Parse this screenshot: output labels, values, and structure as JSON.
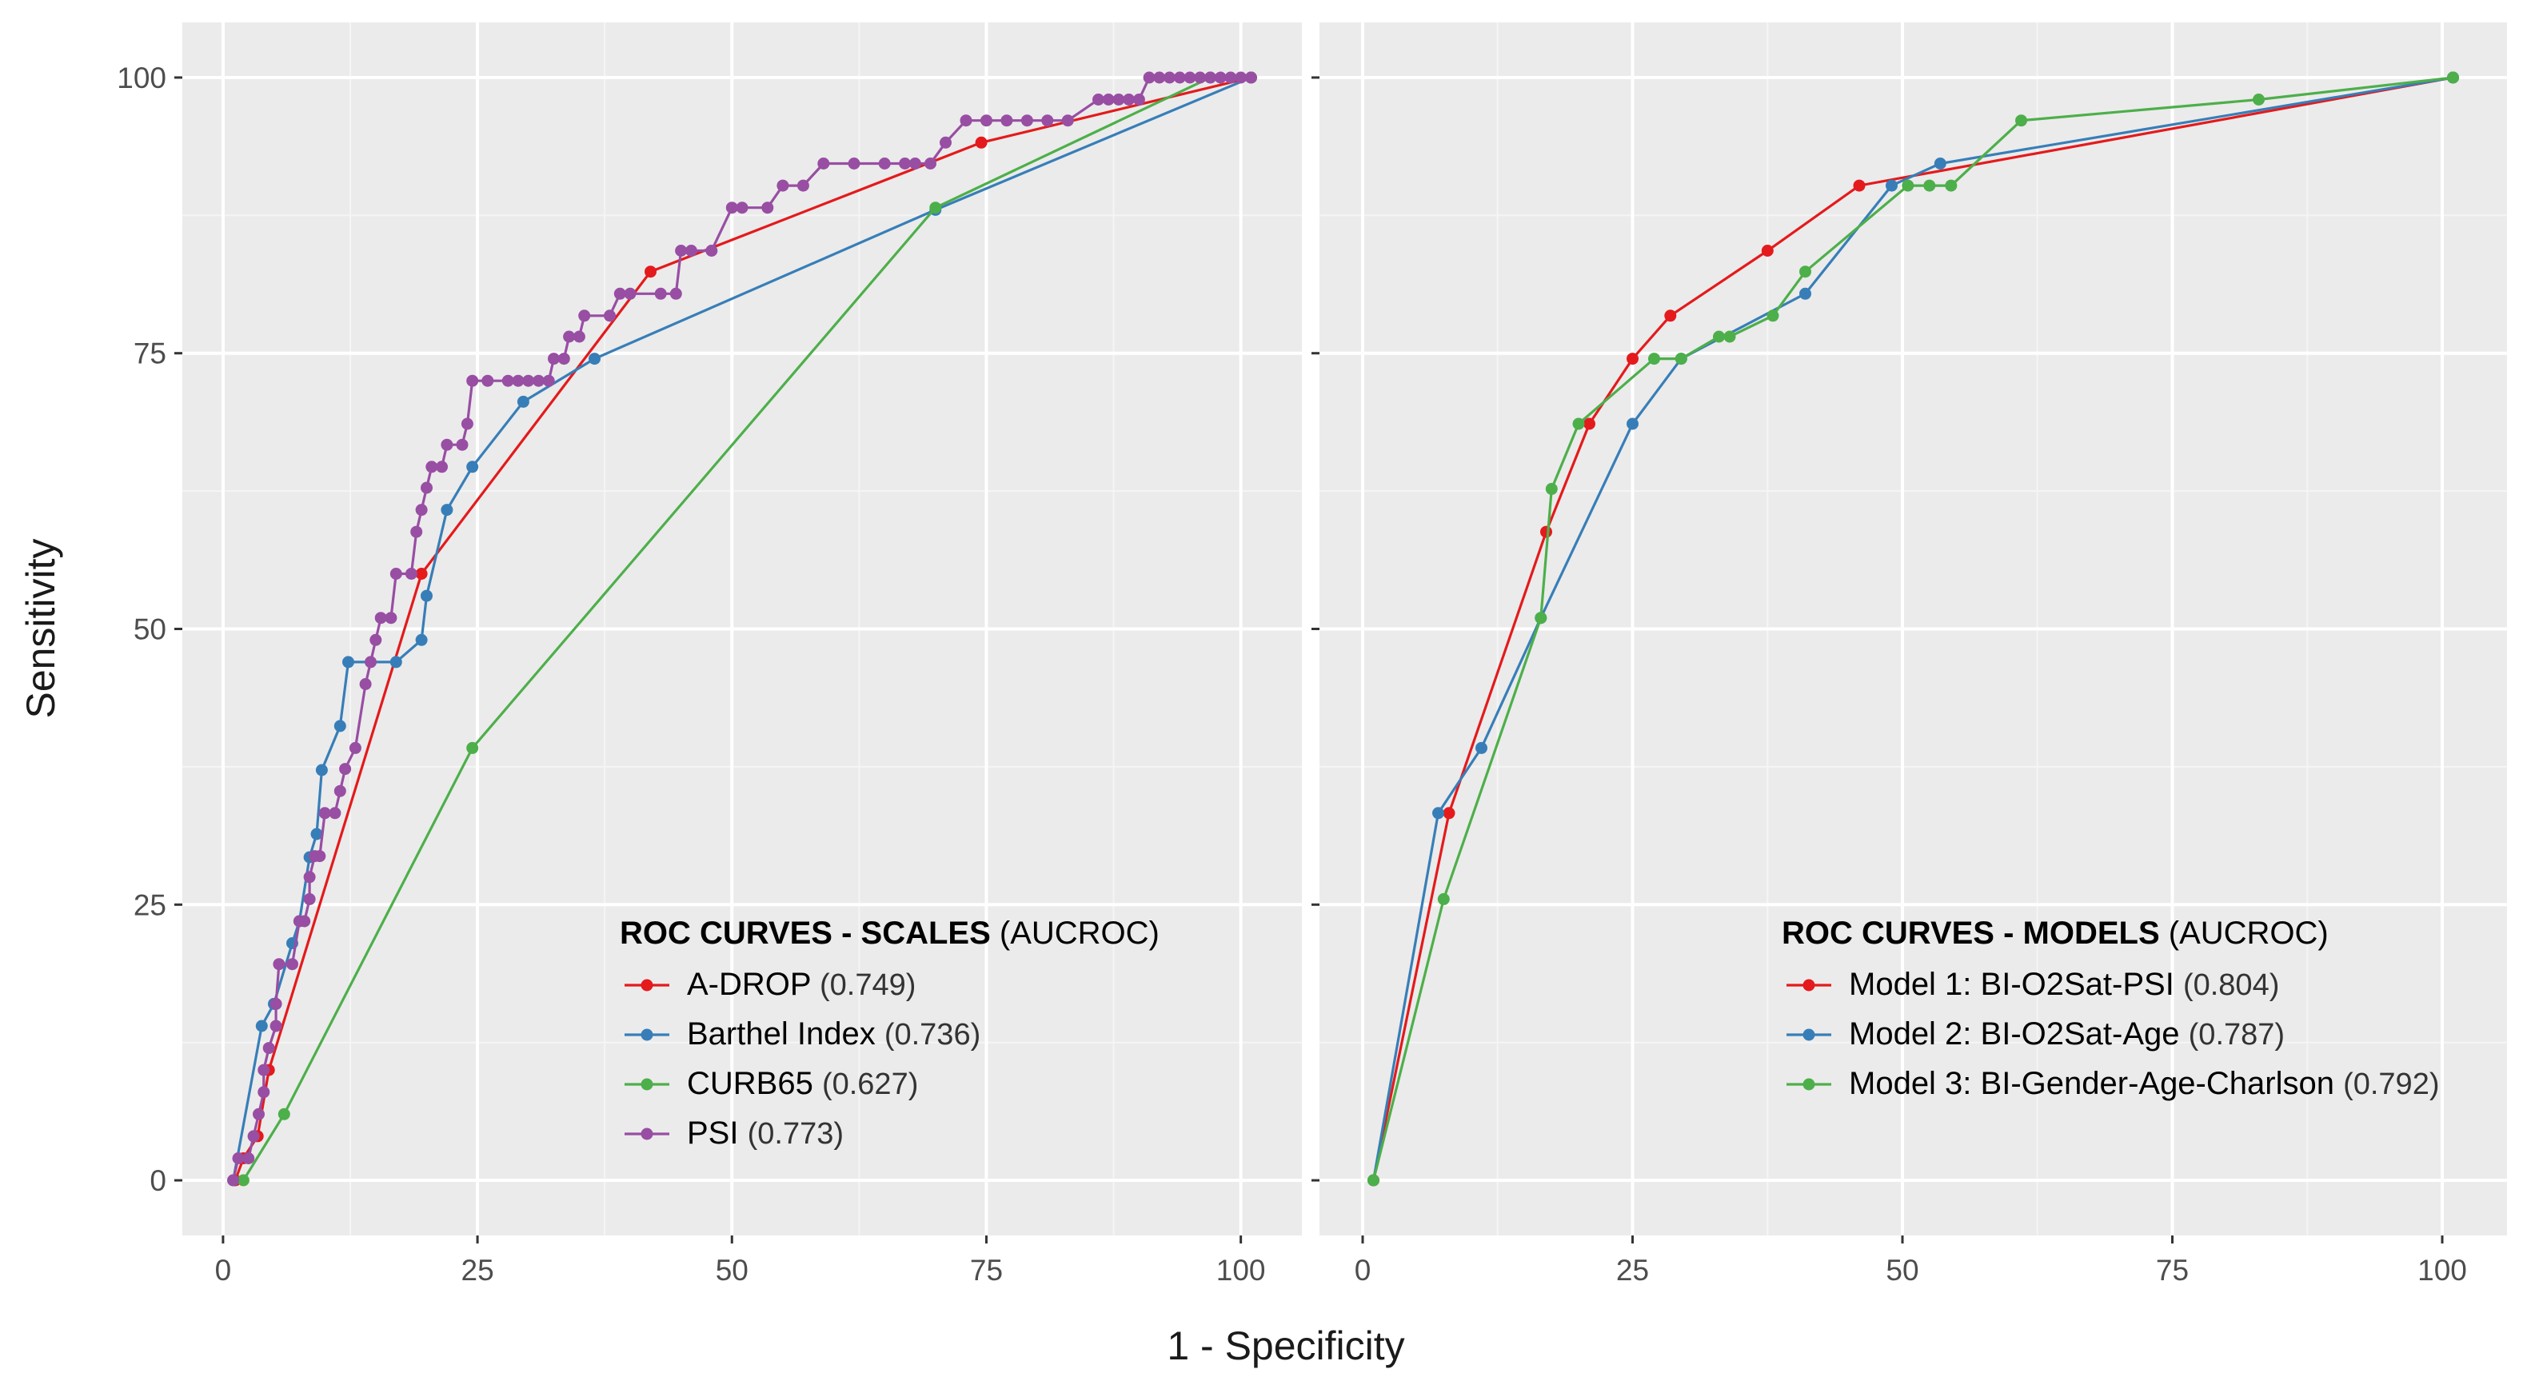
{
  "chart_data": [
    {
      "type": "line",
      "panel": "left",
      "legend_title": "ROC CURVES - SCALES",
      "legend_title_suffix": " (AUCROC)",
      "xlabel": "1 - Specificity",
      "ylabel": "Sensitivity",
      "xlim": [
        -4,
        106
      ],
      "ylim": [
        -5,
        105
      ],
      "xticks": [
        "0",
        "25",
        "50",
        "75",
        "100"
      ],
      "yticks": [
        "0",
        "25",
        "50",
        "75",
        "100"
      ],
      "series": [
        {
          "name": "A-DROP",
          "auc": "(0.749)",
          "color": "#e41a1c",
          "points": [
            [
              1.2,
              0
            ],
            [
              2,
              2
            ],
            [
              3.4,
              4
            ],
            [
              4.5,
              10
            ],
            [
              19.5,
              55
            ],
            [
              42,
              82.4
            ],
            [
              74.5,
              94.1
            ],
            [
              101,
              100
            ]
          ]
        },
        {
          "name": "Barthel Index",
          "auc": "(0.736)",
          "color": "#377eb8",
          "points": [
            [
              1,
              0
            ],
            [
              3.8,
              14
            ],
            [
              5,
              16
            ],
            [
              6.8,
              21.5
            ],
            [
              7.5,
              23.5
            ],
            [
              8.5,
              29.3
            ],
            [
              9.2,
              31.4
            ],
            [
              9.7,
              37.2
            ],
            [
              11.5,
              41.2
            ],
            [
              12.3,
              47
            ],
            [
              17,
              47
            ],
            [
              19.5,
              49
            ],
            [
              20,
              53
            ],
            [
              22,
              60.8
            ],
            [
              24.5,
              64.7
            ],
            [
              29.5,
              70.6
            ],
            [
              36.5,
              74.5
            ],
            [
              70,
              88
            ],
            [
              101,
              100
            ]
          ]
        },
        {
          "name": "CURB65",
          "auc": "(0.627)",
          "color": "#4daf4a",
          "points": [
            [
              2,
              0
            ],
            [
              6,
              6
            ],
            [
              24.5,
              39.2
            ],
            [
              70,
              88.2
            ],
            [
              97,
              100
            ],
            [
              101,
              100
            ]
          ]
        },
        {
          "name": "PSI",
          "auc": "(0.773)",
          "color": "#984ea3",
          "points": [
            [
              1,
              0
            ],
            [
              1.5,
              2
            ],
            [
              2.5,
              2
            ],
            [
              3,
              4
            ],
            [
              3.5,
              6
            ],
            [
              4,
              8
            ],
            [
              4,
              10
            ],
            [
              4.5,
              12
            ],
            [
              5.2,
              14
            ],
            [
              5.2,
              16
            ],
            [
              5.5,
              19.6
            ],
            [
              6.8,
              19.6
            ],
            [
              7.5,
              23.5
            ],
            [
              8,
              23.5
            ],
            [
              8.5,
              25.5
            ],
            [
              8.5,
              27.5
            ],
            [
              9,
              29.4
            ],
            [
              9.5,
              29.4
            ],
            [
              10,
              33.3
            ],
            [
              11,
              33.3
            ],
            [
              11.5,
              35.3
            ],
            [
              12,
              37.3
            ],
            [
              13,
              39.2
            ],
            [
              14,
              45
            ],
            [
              14.5,
              47
            ],
            [
              15,
              49
            ],
            [
              15.5,
              51
            ],
            [
              16.5,
              51
            ],
            [
              17,
              55
            ],
            [
              18.5,
              55
            ],
            [
              19,
              58.8
            ],
            [
              19.5,
              60.8
            ],
            [
              20,
              62.8
            ],
            [
              20.5,
              64.7
            ],
            [
              21.5,
              64.7
            ],
            [
              22,
              66.7
            ],
            [
              23.5,
              66.7
            ],
            [
              24,
              68.6
            ],
            [
              24.5,
              72.5
            ],
            [
              26,
              72.5
            ],
            [
              28,
              72.5
            ],
            [
              29,
              72.5
            ],
            [
              30,
              72.5
            ],
            [
              31,
              72.5
            ],
            [
              32,
              72.5
            ],
            [
              32.5,
              74.5
            ],
            [
              33.5,
              74.5
            ],
            [
              34,
              76.5
            ],
            [
              35,
              76.5
            ],
            [
              35.5,
              78.4
            ],
            [
              38,
              78.4
            ],
            [
              39,
              80.4
            ],
            [
              40,
              80.4
            ],
            [
              43,
              80.4
            ],
            [
              44.5,
              80.4
            ],
            [
              45,
              84.3
            ],
            [
              46,
              84.3
            ],
            [
              48,
              84.3
            ],
            [
              50,
              88.2
            ],
            [
              51,
              88.2
            ],
            [
              53.5,
              88.2
            ],
            [
              55,
              90.2
            ],
            [
              57,
              90.2
            ],
            [
              59,
              92.2
            ],
            [
              62,
              92.2
            ],
            [
              65,
              92.2
            ],
            [
              67,
              92.2
            ],
            [
              68,
              92.2
            ],
            [
              69.5,
              92.2
            ],
            [
              71,
              94.1
            ],
            [
              73,
              96.1
            ],
            [
              75,
              96.1
            ],
            [
              77,
              96.1
            ],
            [
              79,
              96.1
            ],
            [
              81,
              96.1
            ],
            [
              83,
              96.1
            ],
            [
              86,
              98
            ],
            [
              87,
              98
            ],
            [
              88,
              98
            ],
            [
              89,
              98
            ],
            [
              90,
              98
            ],
            [
              91,
              100
            ],
            [
              92,
              100
            ],
            [
              93,
              100
            ],
            [
              94,
              100
            ],
            [
              95,
              100
            ],
            [
              96,
              100
            ],
            [
              97,
              100
            ],
            [
              98,
              100
            ],
            [
              99,
              100
            ],
            [
              100,
              100
            ],
            [
              101,
              100
            ]
          ]
        }
      ]
    },
    {
      "type": "line",
      "panel": "right",
      "legend_title": "ROC CURVES - MODELS",
      "legend_title_suffix": " (AUCROC)",
      "xlabel": "1 - Specificity",
      "ylabel": "Sensitivity",
      "xlim": [
        -4,
        106
      ],
      "ylim": [
        -5,
        105
      ],
      "xticks": [
        "0",
        "25",
        "50",
        "75",
        "100"
      ],
      "series": [
        {
          "name": "Model 1:  BI-O2Sat-PSI",
          "auc": "(0.804)",
          "color": "#e41a1c",
          "points": [
            [
              1,
              0
            ],
            [
              8,
              33.3
            ],
            [
              17,
              58.8
            ],
            [
              21,
              68.6
            ],
            [
              25,
              74.5
            ],
            [
              28.5,
              78.4
            ],
            [
              37.5,
              84.3
            ],
            [
              46,
              90.2
            ],
            [
              101,
              100
            ]
          ]
        },
        {
          "name": "Model 2: BI-O2Sat-Age",
          "auc": "(0.787)",
          "color": "#377eb8",
          "points": [
            [
              1,
              0
            ],
            [
              7,
              33.3
            ],
            [
              11,
              39.2
            ],
            [
              16.5,
              51
            ],
            [
              25,
              68.6
            ],
            [
              29.5,
              74.5
            ],
            [
              41,
              80.4
            ],
            [
              49,
              90.2
            ],
            [
              53.5,
              92.2
            ],
            [
              101,
              100
            ]
          ]
        },
        {
          "name": "Model 3: BI-Gender-Age-Charlson",
          "auc": "(0.792)",
          "color": "#4daf4a",
          "points": [
            [
              1,
              0
            ],
            [
              7.5,
              25.5
            ],
            [
              16.5,
              51
            ],
            [
              17.5,
              62.7
            ],
            [
              20,
              68.6
            ],
            [
              27,
              74.5
            ],
            [
              29.5,
              74.5
            ],
            [
              33,
              76.5
            ],
            [
              34,
              76.5
            ],
            [
              38,
              78.4
            ],
            [
              41,
              82.4
            ],
            [
              50.5,
              90.2
            ],
            [
              52.5,
              90.2
            ],
            [
              54.5,
              90.2
            ],
            [
              61,
              96.1
            ],
            [
              83,
              98
            ],
            [
              101,
              100
            ]
          ]
        }
      ]
    }
  ]
}
